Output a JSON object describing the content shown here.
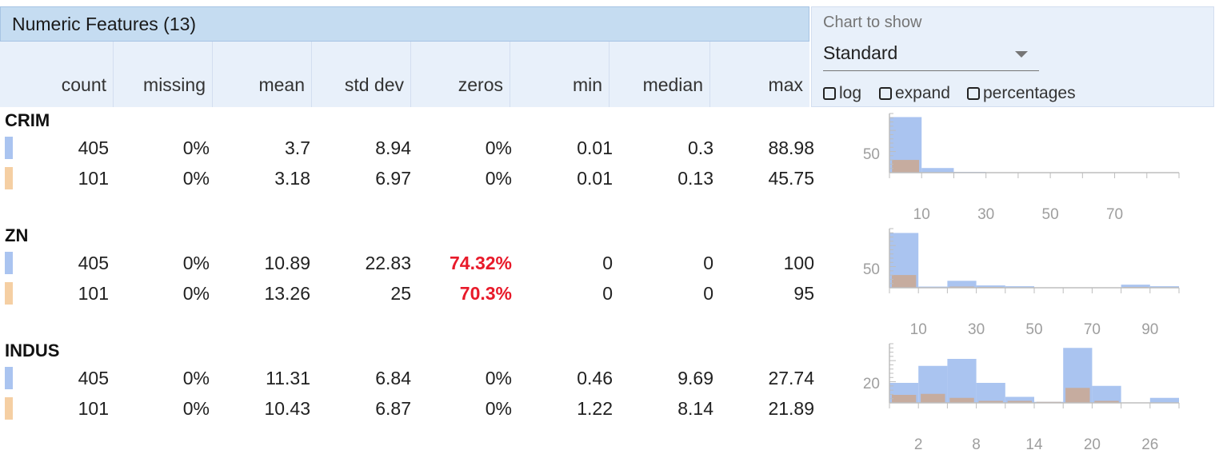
{
  "section_title": "Numeric Features (13)",
  "columns": [
    "count",
    "missing",
    "mean",
    "std dev",
    "zeros",
    "min",
    "median",
    "max"
  ],
  "controls": {
    "chart_label": "Chart to show",
    "chart_value": "Standard",
    "checkboxes": [
      {
        "label": "log",
        "checked": false
      },
      {
        "label": "expand",
        "checked": false
      },
      {
        "label": "percentages",
        "checked": false
      }
    ]
  },
  "colors": {
    "train": "#aac4f0",
    "test": "#f5cfa3",
    "highlight": "#e81a2a",
    "overlap": "#c9aa96"
  },
  "features": [
    {
      "name": "CRIM",
      "rows": [
        {
          "count": "405",
          "missing": "0%",
          "mean": "3.7",
          "std_dev": "8.94",
          "zeros": "0%",
          "min": "0.01",
          "median": "0.3",
          "max": "88.98"
        },
        {
          "count": "101",
          "missing": "0%",
          "mean": "3.18",
          "std_dev": "6.97",
          "zeros": "0%",
          "min": "0.01",
          "median": "0.13",
          "max": "45.75"
        }
      ],
      "histogram": {
        "y_tick_label": "50",
        "y_tick_value": 50,
        "y_max": 145,
        "x_ticks": [
          "10",
          "30",
          "50",
          "70"
        ],
        "bins_a": [
          144,
          12,
          2,
          0,
          0,
          0,
          0,
          0,
          0
        ],
        "bins_b": [
          33,
          0,
          0,
          0,
          0,
          0,
          0,
          0,
          0
        ]
      }
    },
    {
      "name": "ZN",
      "rows": [
        {
          "count": "405",
          "missing": "0%",
          "mean": "10.89",
          "std_dev": "22.83",
          "zeros": "74.32%",
          "min": "0",
          "median": "0",
          "max": "100"
        },
        {
          "count": "101",
          "missing": "0%",
          "mean": "13.26",
          "std_dev": "25",
          "zeros": "70.3%",
          "min": "0",
          "median": "0",
          "max": "95"
        }
      ],
      "zeros_highlight": true,
      "histogram": {
        "y_tick_label": "50",
        "y_tick_value": 50,
        "y_max": 145,
        "x_ticks": [
          "10",
          "30",
          "50",
          "70",
          "90"
        ],
        "bins_a": [
          142,
          3,
          18,
          6,
          4,
          1,
          1,
          0,
          8,
          4
        ],
        "bins_b": [
          33,
          0,
          3,
          2,
          1,
          0,
          0,
          0,
          2,
          1
        ]
      }
    },
    {
      "name": "INDUS",
      "rows": [
        {
          "count": "405",
          "missing": "0%",
          "mean": "11.31",
          "std_dev": "6.84",
          "zeros": "0%",
          "min": "0.46",
          "median": "9.69",
          "max": "27.74"
        },
        {
          "count": "101",
          "missing": "0%",
          "mean": "10.43",
          "std_dev": "6.87",
          "zeros": "0%",
          "min": "1.22",
          "median": "8.14",
          "max": "21.89"
        }
      ],
      "histogram": {
        "y_tick_label": "20",
        "y_tick_value": 20,
        "y_max": 56,
        "x_ticks": [
          "2",
          "8",
          "14",
          "20",
          "26"
        ],
        "bins_a": [
          20,
          37,
          44,
          20,
          6,
          1,
          55,
          17,
          0,
          5
        ],
        "bins_b": [
          8,
          9,
          5,
          2,
          2,
          1,
          15,
          2,
          0,
          0
        ]
      }
    }
  ]
}
